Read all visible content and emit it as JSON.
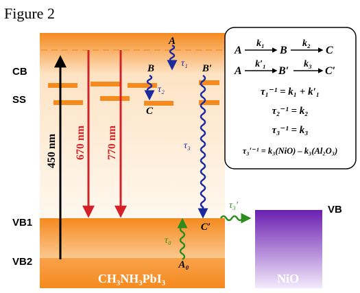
{
  "figure_label": "Figure 2",
  "levels": {
    "cb": "CB",
    "ss": "SS",
    "vb1": "VB1",
    "vb2": "VB2",
    "vb_nio": "VB"
  },
  "materials": {
    "perovskite": "CH₃NH₃PbI₃",
    "nio": "NiO"
  },
  "wavelengths": {
    "pump": "450 nm",
    "probe1": "670 nm",
    "probe2": "770 nm"
  },
  "states": {
    "a": "A",
    "b": "B",
    "c": "C",
    "b_prime": "B′",
    "c_prime": "C′",
    "a0": "A₀"
  },
  "lifetimes": {
    "tau1": "τ₁",
    "tau2": "τ₂",
    "tau3": "τ₃",
    "tau0": "τ₀",
    "tau3_prime": "τ₃′"
  },
  "scheme": {
    "row1_a": "A",
    "row1_k1": "k₁",
    "row1_b": "B",
    "row1_k2": "k₂",
    "row1_c": "C",
    "row2_a": "A",
    "row2_k1p": "k′₁",
    "row2_bp": "B′",
    "row2_k3": "k₃",
    "row2_cp": "C′",
    "eq1": "τ₁⁻¹ = k₁ + k′₁",
    "eq2": "τ₂⁻¹ = k₂",
    "eq3": "τ₃⁻¹ = k₃",
    "eq4": "τ₃′⁻¹ = k₃(NiO) – k₃(Al₂O₃)"
  },
  "colors": {
    "band_dark": "#f58a1f",
    "band_light": "#fde3c4",
    "dashed_level": "#f39a3a",
    "pump_arrow": "#000000",
    "probe_arrow": "#d2232a",
    "relax_wave": "#1b2a9c",
    "hole_wave": "#2e8b1f",
    "nio_top": "#6a1fb0",
    "nio_bottom": "#f3eafc",
    "ink": "#000000",
    "white": "#ffffff"
  }
}
